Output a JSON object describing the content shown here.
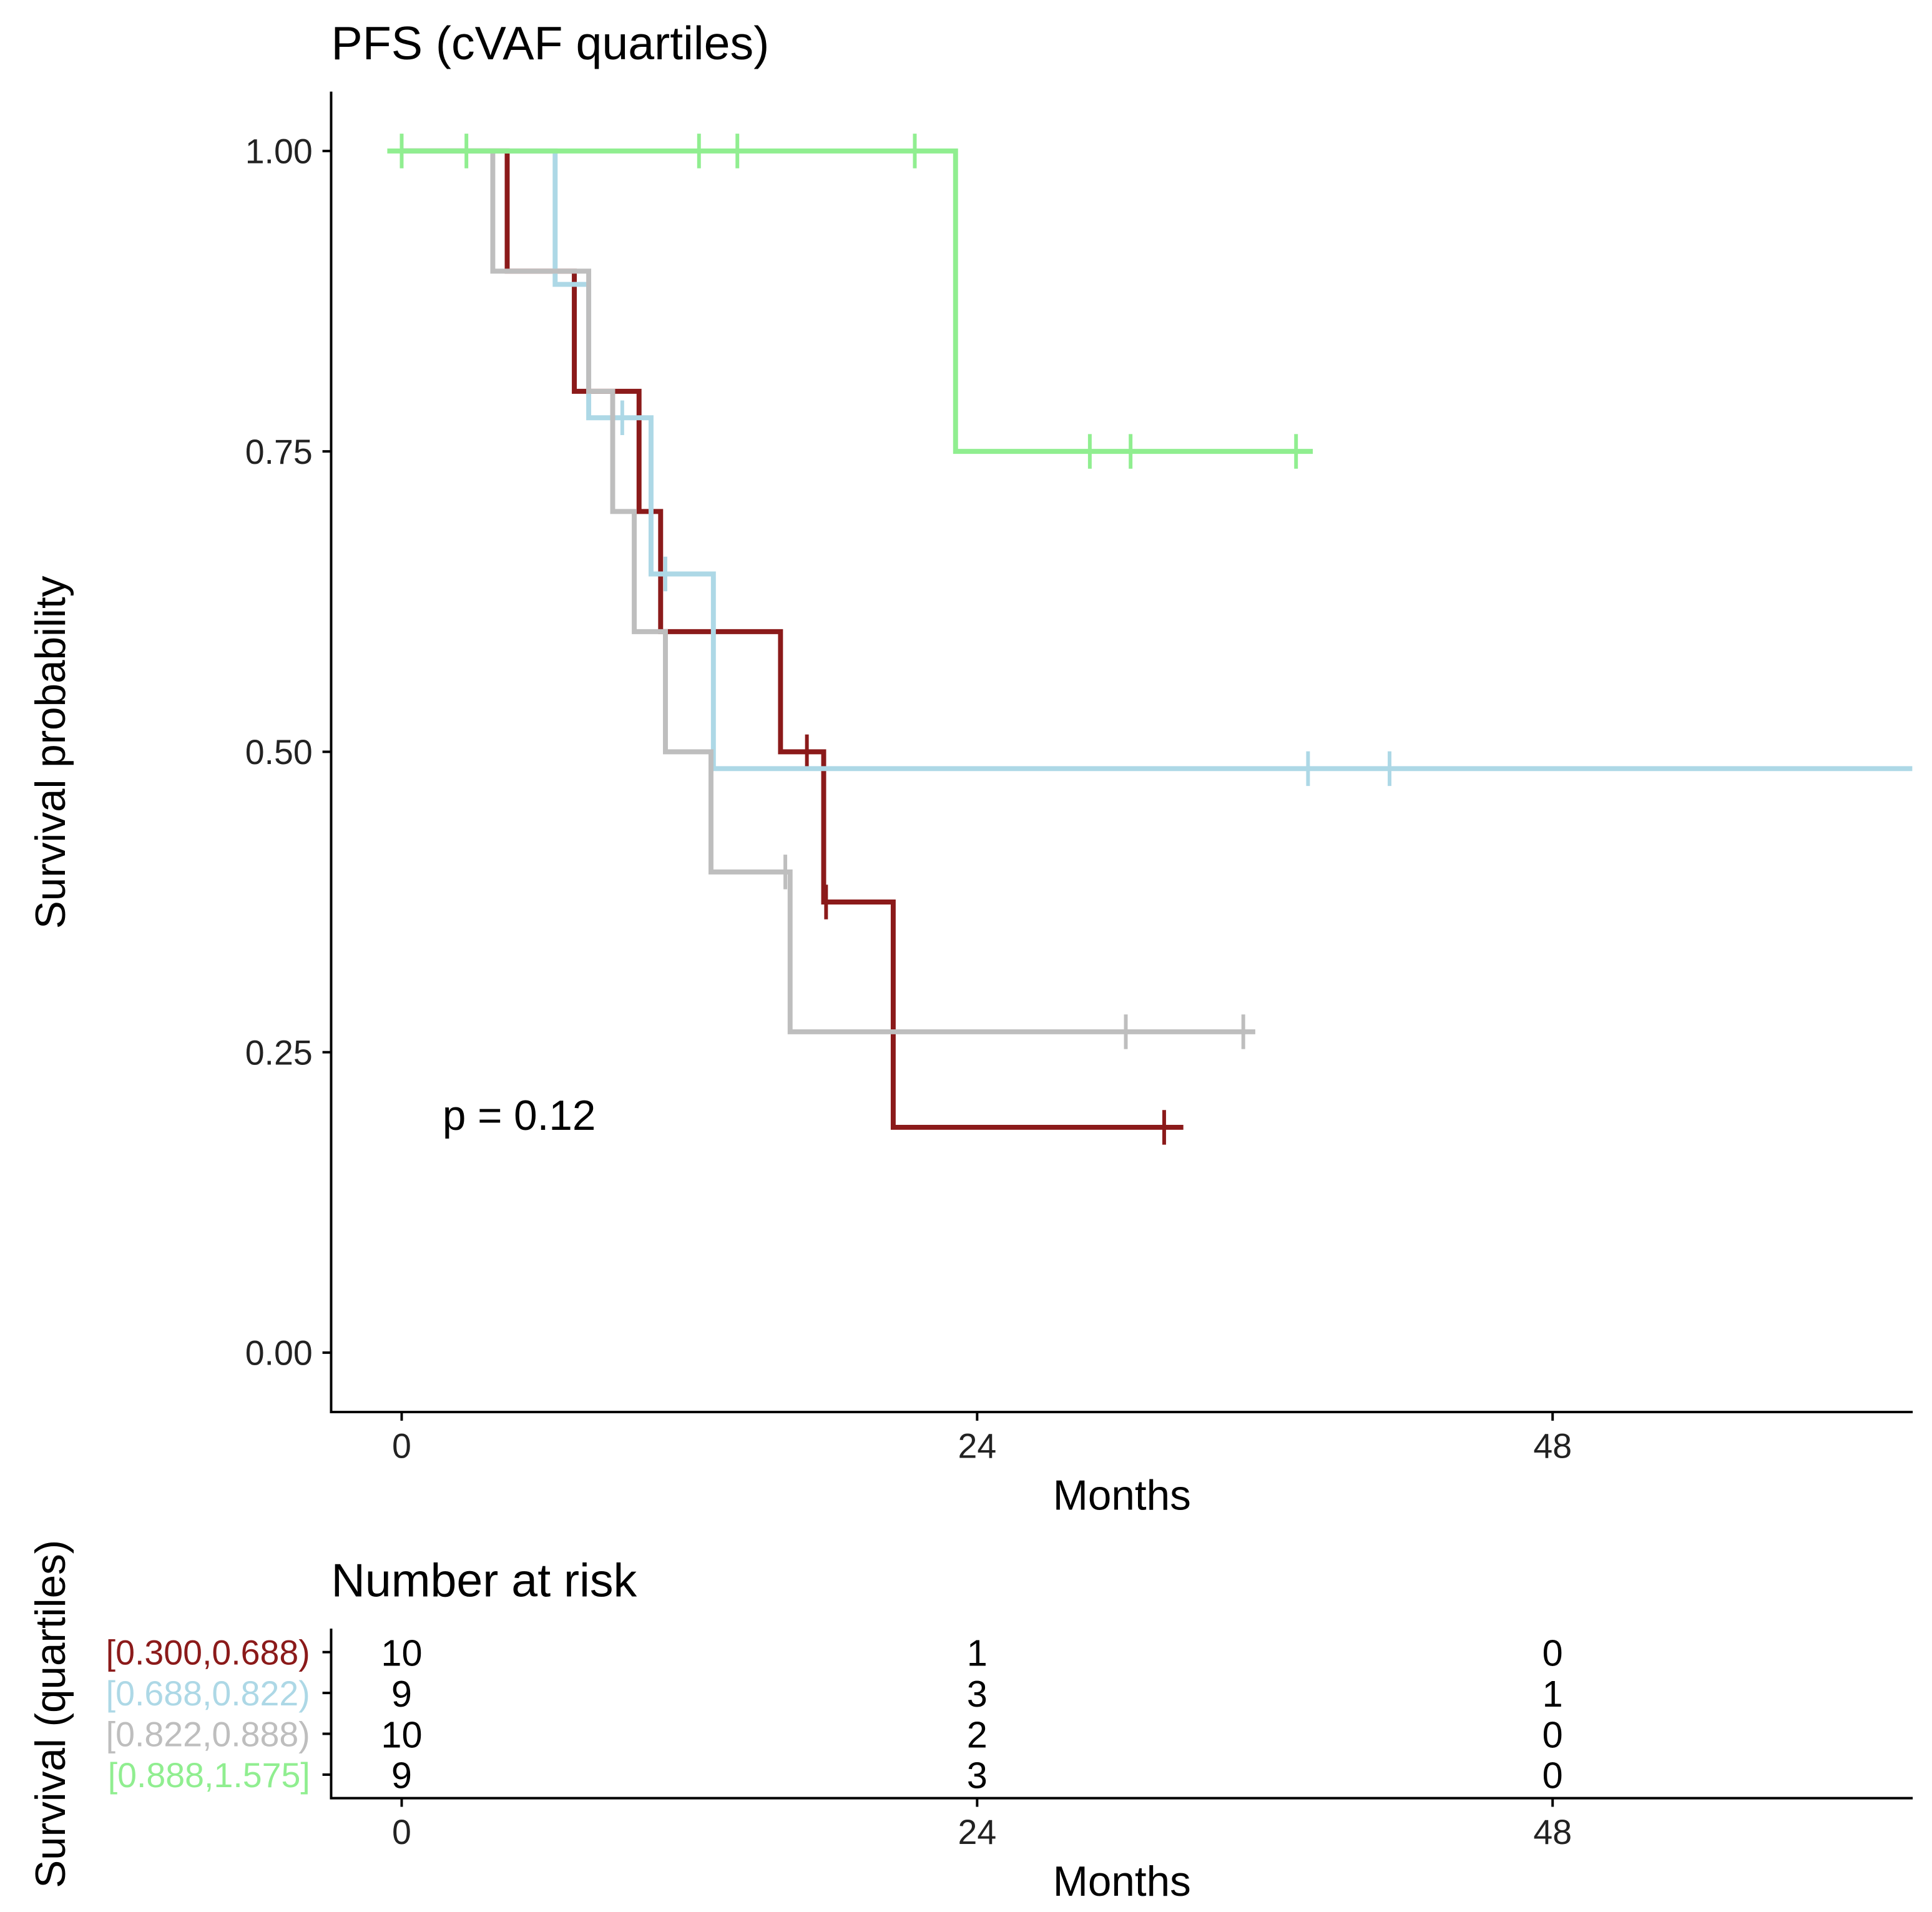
{
  "chart_data": {
    "type": "line",
    "subtype": "kaplan-meier",
    "title": "PFS (cVAF quartiles)",
    "xlabel": "Months",
    "ylabel": "Survival probability",
    "xlim": [
      -2.94,
      63
    ],
    "ylim": [
      -0.05,
      1.05
    ],
    "xticks": [
      "0",
      "24",
      "48"
    ],
    "xtick_values": [
      0,
      24,
      48
    ],
    "yticks": [
      "0.00",
      "0.25",
      "0.50",
      "0.75",
      "1.00"
    ],
    "ytick_values": [
      0,
      0.25,
      0.5,
      0.75,
      1.0
    ],
    "annotation": "p = 0.12",
    "series": [
      {
        "name": "[0.300,0.688)",
        "color": "#8B1A1A",
        "steps": [
          [
            0,
            1
          ],
          [
            4.4,
            0.9
          ],
          [
            7.2,
            0.8
          ],
          [
            9.9,
            0.7
          ],
          [
            10.8,
            0.6
          ],
          [
            15.8,
            0.5
          ],
          [
            17.6,
            0.375
          ],
          [
            20.5,
            0.1875
          ]
        ],
        "end": 32.6,
        "censors": [
          16.9,
          17.7,
          31.8
        ]
      },
      {
        "name": "[0.688,0.822)",
        "color": "#ADD8E6",
        "steps": [
          [
            0,
            1
          ],
          [
            6.4,
            0.889
          ],
          [
            7.8,
            0.778
          ],
          [
            10.4,
            0.648
          ],
          [
            13.0,
            0.486
          ]
        ],
        "end": 63,
        "censors": [
          9.2,
          11.0,
          37.8,
          41.2
        ]
      },
      {
        "name": "[0.822,0.888)",
        "color": "#BEBEBE",
        "steps": [
          [
            0,
            1
          ],
          [
            3.8,
            0.9
          ],
          [
            7.8,
            0.8
          ],
          [
            8.8,
            0.7
          ],
          [
            9.7,
            0.6
          ],
          [
            11.0,
            0.5
          ],
          [
            12.9,
            0.4
          ],
          [
            16.2,
            0.267
          ]
        ],
        "end": 35.6,
        "censors": [
          16.0,
          30.2,
          35.1
        ]
      },
      {
        "name": "[0.888,1.575]",
        "color": "#90EE90",
        "steps": [
          [
            -0.6,
            1
          ],
          [
            23.1,
            0.75
          ]
        ],
        "end": 38,
        "censors": [
          0,
          2.7,
          12.4,
          14.0,
          21.4,
          28.7,
          30.4,
          37.3
        ]
      }
    ],
    "risk_table": {
      "title": "Number at risk",
      "ylabel": "Survival (quartiles)",
      "xlabel": "Months",
      "times": [
        "0",
        "24",
        "48"
      ],
      "rows": [
        {
          "label": "[0.300,0.688)",
          "values": [
            "10",
            "1",
            "0"
          ]
        },
        {
          "label": "[0.688,0.822)",
          "values": [
            "9",
            "3",
            "1"
          ]
        },
        {
          "label": "[0.822,0.888)",
          "values": [
            "10",
            "2",
            "0"
          ]
        },
        {
          "label": "[0.888,1.575]",
          "values": [
            "9",
            "3",
            "0"
          ]
        }
      ]
    }
  }
}
